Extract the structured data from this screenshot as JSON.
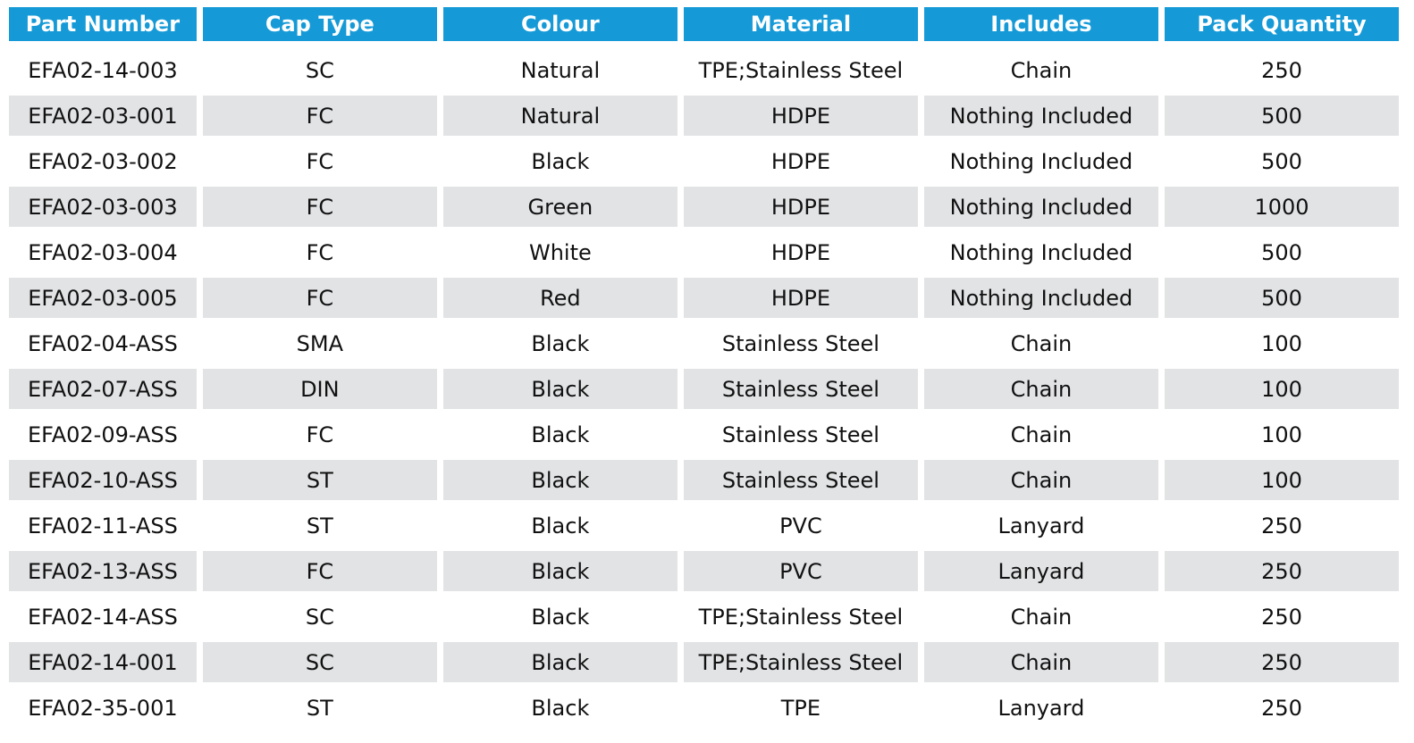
{
  "table": {
    "headers": [
      "Part Number",
      "Cap Type",
      "Colour",
      "Material",
      "Includes",
      "Pack Quantity"
    ],
    "rows": [
      [
        "EFA02-14-003",
        "SC",
        "Natural",
        "TPE;Stainless Steel",
        "Chain",
        "250"
      ],
      [
        "EFA02-03-001",
        "FC",
        "Natural",
        "HDPE",
        "Nothing Included",
        "500"
      ],
      [
        "EFA02-03-002",
        "FC",
        "Black",
        "HDPE",
        "Nothing Included",
        "500"
      ],
      [
        "EFA02-03-003",
        "FC",
        "Green",
        "HDPE",
        "Nothing Included",
        "1000"
      ],
      [
        "EFA02-03-004",
        "FC",
        "White",
        "HDPE",
        "Nothing Included",
        "500"
      ],
      [
        "EFA02-03-005",
        "FC",
        "Red",
        "HDPE",
        "Nothing Included",
        "500"
      ],
      [
        "EFA02-04-ASS",
        "SMA",
        "Black",
        "Stainless Steel",
        "Chain",
        "100"
      ],
      [
        "EFA02-07-ASS",
        "DIN",
        "Black",
        "Stainless Steel",
        "Chain",
        "100"
      ],
      [
        "EFA02-09-ASS",
        "FC",
        "Black",
        "Stainless Steel",
        "Chain",
        "100"
      ],
      [
        "EFA02-10-ASS",
        "ST",
        "Black",
        "Stainless Steel",
        "Chain",
        "100"
      ],
      [
        "EFA02-11-ASS",
        "ST",
        "Black",
        "PVC",
        "Lanyard",
        "250"
      ],
      [
        "EFA02-13-ASS",
        "FC",
        "Black",
        "PVC",
        "Lanyard",
        "250"
      ],
      [
        "EFA02-14-ASS",
        "SC",
        "Black",
        "TPE;Stainless Steel",
        "Chain",
        "250"
      ],
      [
        "EFA02-14-001",
        "SC",
        "Black",
        "TPE;Stainless Steel",
        "Chain",
        "250"
      ],
      [
        "EFA02-35-001",
        "ST",
        "Black",
        "TPE",
        "Lanyard",
        "250"
      ]
    ]
  },
  "colors": {
    "header_bg": "#169ad7",
    "header_text": "#ffffff",
    "stripe_bg": "#e2e3e5",
    "body_text": "#111111"
  }
}
